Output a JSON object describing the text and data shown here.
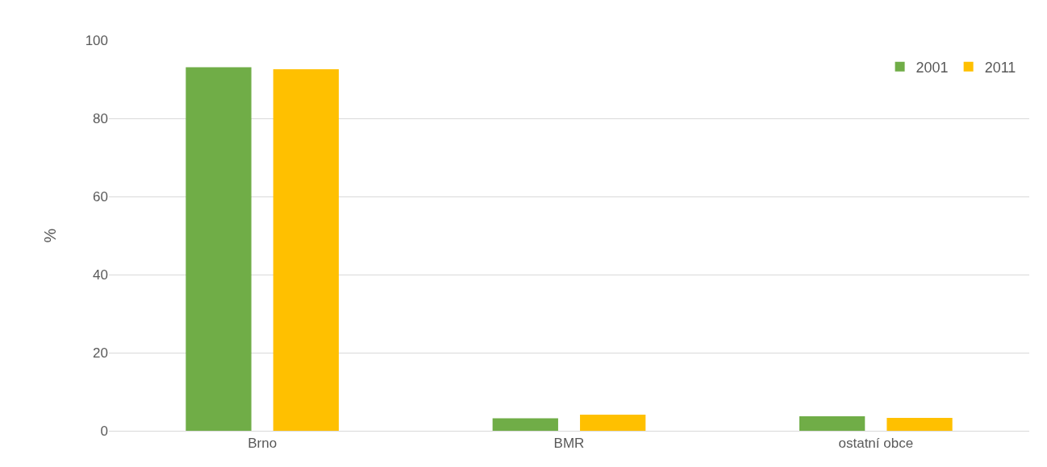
{
  "chart_data": {
    "type": "bar",
    "ylabel": "%",
    "categories": [
      "Brno",
      "BMR",
      "ostatní obce"
    ],
    "series": [
      {
        "name": "2001",
        "color": "#70ad47",
        "values": [
          93.1,
          3.2,
          3.7
        ]
      },
      {
        "name": "2011",
        "color": "#ffc000",
        "values": [
          92.6,
          4.1,
          3.3
        ]
      }
    ],
    "ylim": [
      0,
      100
    ],
    "yticks": [
      0,
      20,
      40,
      60,
      80,
      100
    ],
    "grid": "y",
    "legend": "top right"
  }
}
